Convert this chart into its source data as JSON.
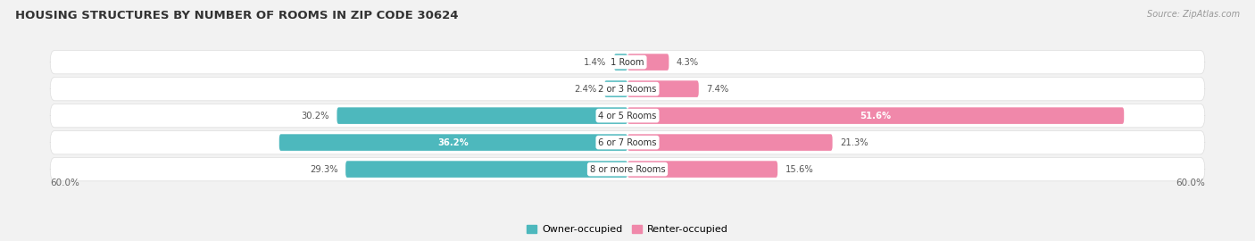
{
  "title": "HOUSING STRUCTURES BY NUMBER OF ROOMS IN ZIP CODE 30624",
  "source": "Source: ZipAtlas.com",
  "categories": [
    "1 Room",
    "2 or 3 Rooms",
    "4 or 5 Rooms",
    "6 or 7 Rooms",
    "8 or more Rooms"
  ],
  "owner_values": [
    1.4,
    2.4,
    30.2,
    36.2,
    29.3
  ],
  "renter_values": [
    4.3,
    7.4,
    51.6,
    21.3,
    15.6
  ],
  "owner_label_inside": [
    false,
    false,
    false,
    true,
    false
  ],
  "renter_label_inside": [
    false,
    false,
    true,
    false,
    false
  ],
  "x_max": 60.0,
  "owner_color": "#4db8bd",
  "renter_color": "#f088aa",
  "bg_color": "#f2f2f2",
  "row_bg_color": "#ffffff",
  "title_fontsize": 9.5,
  "bar_height": 0.62,
  "tick_label": "60.0%",
  "legend_owner": "Owner-occupied",
  "legend_renter": "Renter-occupied"
}
